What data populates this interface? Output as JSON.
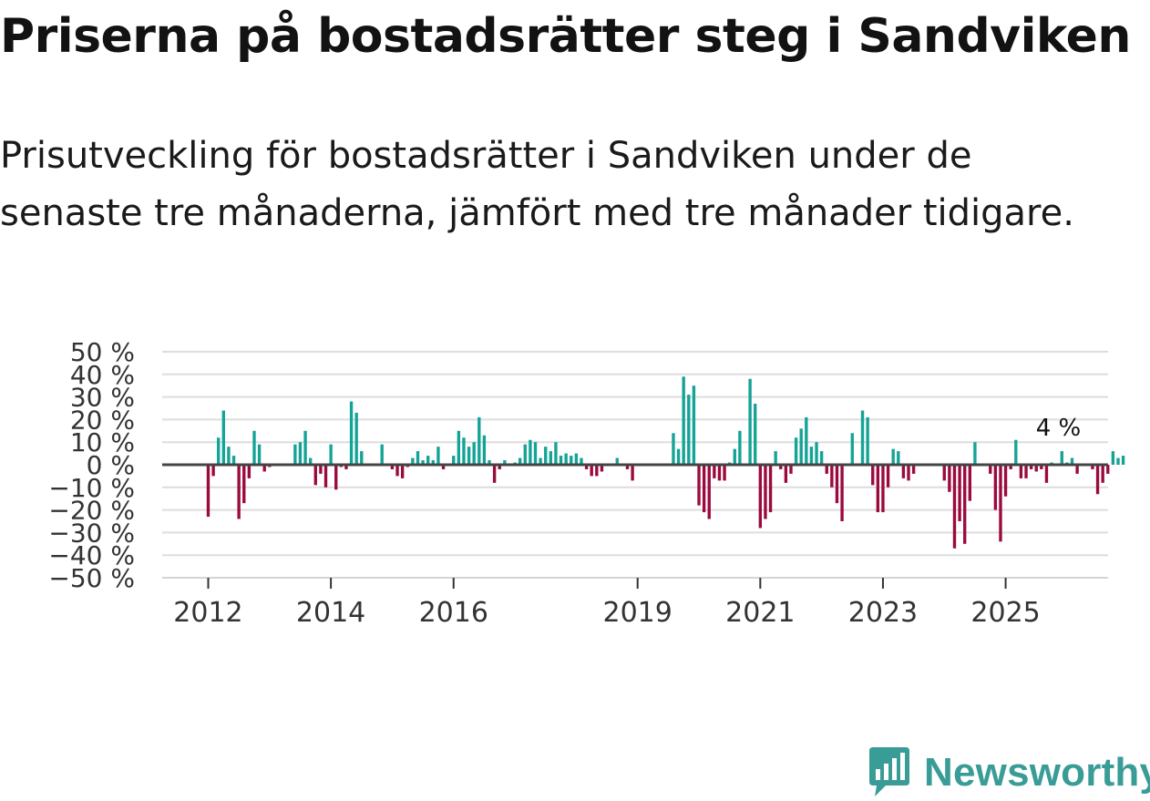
{
  "title": "Priserna på bostadsrätter steg i Sandviken",
  "subtitle": "Prisutveckling för bostadsrätter i Sandviken under de senaste tre månaderna, jämfört med tre månader tidigare.",
  "brand": {
    "name": "Newsworthy",
    "color": "#3a9c97"
  },
  "colors": {
    "positive": "#14a397",
    "negative": "#9b0a3f",
    "grid": "#dddddd",
    "zero": "#444444"
  },
  "chart_data": {
    "type": "bar",
    "title": "Priserna på bostadsrätter steg i Sandviken",
    "xlabel": "",
    "ylabel": "",
    "ylim": [
      -50,
      50
    ],
    "y_ticks": [
      50,
      40,
      30,
      20,
      10,
      0,
      -10,
      -20,
      -30,
      -40,
      -50
    ],
    "y_tick_labels": [
      "50 %",
      "40 %",
      "30 %",
      "20 %",
      "10 %",
      "0 %",
      "−10 %",
      "−20 %",
      "−30 %",
      "−40 %",
      "−50 %"
    ],
    "x_ticks": [
      "2012",
      "2014",
      "2016",
      "2019",
      "2021",
      "2023",
      "2025"
    ],
    "x_tick_positions": [
      2012.0,
      2014.0,
      2016.0,
      2019.0,
      2021.0,
      2023.0,
      2025.0
    ],
    "x_range": [
      2011.25,
      2026.67
    ],
    "bar_width_years": 0.05,
    "annotation": {
      "text": "4 %",
      "x": 2025.83,
      "y": 4
    },
    "series": [
      {
        "name": "Prisutveckling",
        "x_start": 2012.0,
        "step": 0.0833333,
        "values": [
          -23,
          -5,
          12,
          24,
          8,
          4,
          -24,
          -17,
          -6,
          15,
          9,
          -3,
          -1,
          0,
          0,
          0,
          0,
          9,
          10,
          15,
          3,
          -9,
          -4,
          -10,
          9,
          -11,
          -1,
          -2,
          28,
          23,
          6,
          0,
          0,
          0,
          9,
          0,
          -2,
          -5,
          -6,
          -1,
          3,
          6,
          2,
          4,
          2,
          8,
          -2,
          0,
          4,
          15,
          12,
          8,
          10,
          21,
          13,
          2,
          -8,
          -2,
          2,
          0,
          1,
          3,
          9,
          11,
          10,
          3,
          8,
          6,
          10,
          4,
          5,
          4,
          5,
          3,
          -2,
          -5,
          -5,
          -3,
          0,
          0,
          3,
          0,
          -2,
          -7,
          0,
          0,
          0,
          0,
          0,
          0,
          0,
          14,
          7,
          39,
          31,
          35,
          -18,
          -21,
          -24,
          -6,
          -7,
          -7,
          1,
          7,
          15,
          0,
          38,
          27,
          -28,
          -24,
          -21,
          6,
          -2,
          -8,
          -4,
          12,
          16,
          21,
          8,
          10,
          6,
          -4,
          -10,
          -17,
          -25,
          0,
          14,
          0,
          24,
          21,
          -9,
          -21,
          -21,
          -10,
          7,
          6,
          -6,
          -7,
          -4,
          0,
          0,
          0,
          0,
          0,
          -7,
          -12,
          -37,
          -25,
          -35,
          -16,
          10,
          0,
          0,
          -4,
          -20,
          -34,
          -14,
          -2,
          11,
          -6,
          -6,
          -2,
          -3,
          -2,
          -8,
          1,
          0,
          6,
          1,
          3,
          -4,
          0,
          0,
          -2,
          -13,
          -8,
          -4,
          6,
          3,
          4
        ]
      }
    ]
  }
}
